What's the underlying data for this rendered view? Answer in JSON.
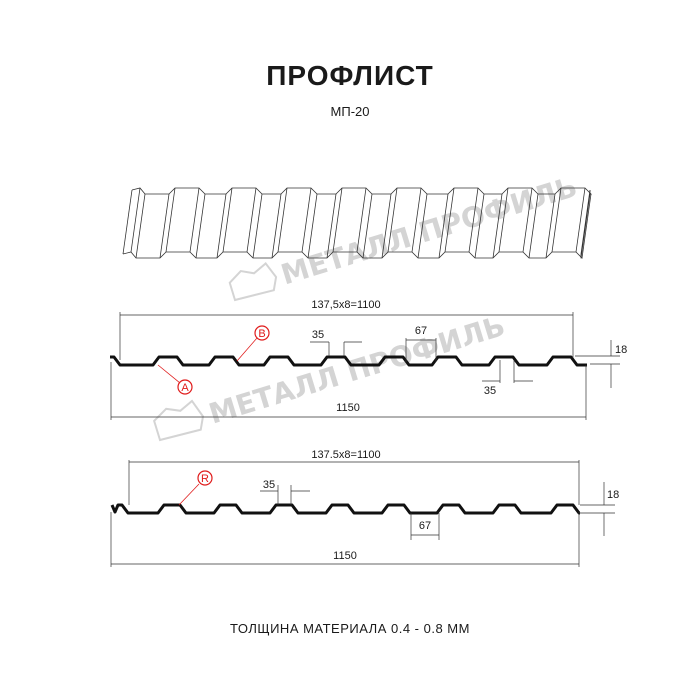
{
  "header": {
    "title": "ПРОФЛИСТ",
    "subtitle": "МП-20"
  },
  "watermark": {
    "text": "МЕТАЛЛ ПРОФИЛЬ",
    "color": "#d4d4d4"
  },
  "profile_1": {
    "pitch_label": "137,5x8=1100",
    "width_label": "1150",
    "crest_label": "35",
    "bottom_label": "35",
    "trough_label": "67",
    "height_label": "18",
    "markers": [
      "A",
      "B"
    ]
  },
  "profile_2": {
    "pitch_label": "137.5x8=1100",
    "width_label": "1150",
    "crest_label": "35",
    "trough_label": "67",
    "height_label": "18",
    "markers": [
      "R"
    ]
  },
  "footer": {
    "thickness": "ТОЛЩИНА МАТЕРИАЛА 0.4 - 0.8 ММ"
  },
  "colors": {
    "marker": "#e01b1b",
    "line": "#1a1a1a"
  }
}
